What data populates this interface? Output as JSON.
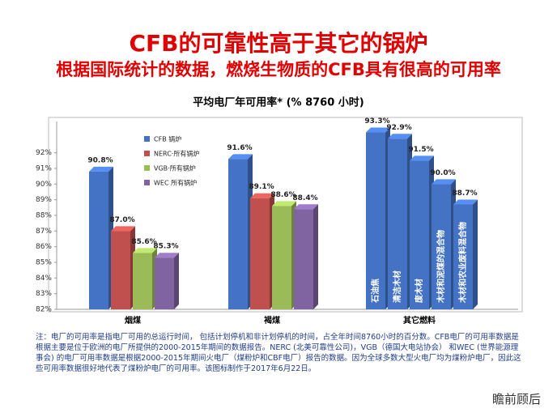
{
  "title": "CFB的可靠性高于其它的锅炉",
  "subtitle": "根据国际统计的数据，燃烧生物质的CFB具有很高的可用率",
  "chart_data": {
    "type": "bar",
    "title": "平均电厂年可用率* (% 8760 小时)",
    "categories": [
      "烟煤",
      "褐煤"
    ],
    "series": [
      {
        "name": "CFB 锅炉",
        "color": "#4472c4",
        "values": [
          90.8,
          91.6
        ],
        "value_labels": [
          "90.8%",
          "91.6%"
        ]
      },
      {
        "name": "NERC·所有锅炉",
        "color": "#c0504d",
        "values": [
          87.0,
          89.1
        ],
        "value_labels": [
          "87.0%",
          "89.1%"
        ]
      },
      {
        "name": "VGB·所有锅炉",
        "color": "#9bbb59",
        "values": [
          85.6,
          88.6
        ],
        "value_labels": [
          "85.6%",
          "88.6%"
        ]
      },
      {
        "name": "WEC 所有锅炉",
        "color": "#8064a2",
        "values": [
          85.3,
          88.4
        ],
        "value_labels": [
          "85.3%",
          "88.4%"
        ]
      }
    ],
    "other_group": {
      "category": "其它燃料",
      "color": "#4472c4",
      "labels": [
        "石油焦",
        "清洁木材",
        "废木材",
        "木材和泥煤的混合物",
        "木材和农业废料混合物"
      ],
      "values": [
        93.3,
        92.9,
        91.5,
        90.0,
        88.7
      ],
      "value_labels": [
        "93.3%",
        "92.9%",
        "91.5%",
        "90.0%",
        "88.7%"
      ]
    },
    "ylim": [
      82,
      94
    ],
    "yticks": [
      {
        "value": 82,
        "label": "82%"
      },
      {
        "value": 83,
        "label": "83%"
      },
      {
        "value": 84,
        "label": "84%"
      },
      {
        "value": 85,
        "label": "85%"
      },
      {
        "value": 86,
        "label": "86%"
      },
      {
        "value": 87,
        "label": "87%"
      },
      {
        "value": 88,
        "label": "88%"
      },
      {
        "value": 89,
        "label": "89%"
      },
      {
        "value": 90,
        "label": "90%"
      },
      {
        "value": 91,
        "label": "91%"
      },
      {
        "value": 92,
        "label": "92%"
      }
    ],
    "grid": false,
    "legend": "upper left"
  },
  "note": "注：电厂的可用率是指电厂可用的总运行时间， 包括计划停机和非计划停机的时间，占全年时间8760小时的百分数。CFB电厂的可用率数据是根据主要是位于欧洲的电厂所提供的2000-2015年期间的数据报告。NERC (北美可靠性公司)，VGB（德国大电站协会） 和WEC (世界能源理事会) 的电厂可用率数据是根据2000-2015年期间火电厂（煤粉炉和CBF电厂）报告的数据。因为全球多数大型火电厂均为煤粉炉电厂，因此这些可用率数据很好地代表了煤粉炉电厂的可用率。该图标制作于2017年6月22日。",
  "watermark": "瞻前顾后"
}
